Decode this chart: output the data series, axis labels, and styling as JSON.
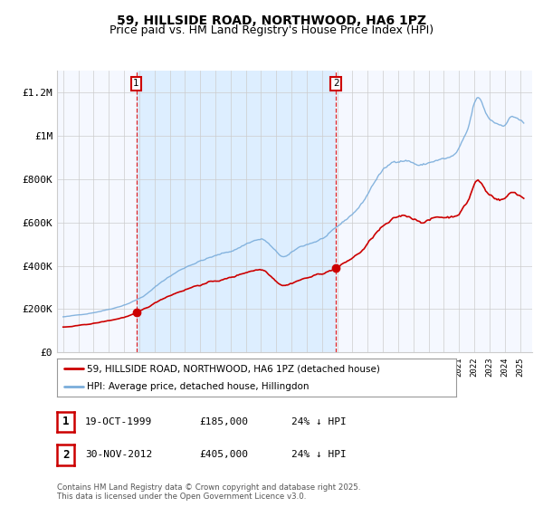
{
  "title": "59, HILLSIDE ROAD, NORTHWOOD, HA6 1PZ",
  "subtitle": "Price paid vs. HM Land Registry's House Price Index (HPI)",
  "title_fontsize": 10,
  "subtitle_fontsize": 9,
  "ylabel_ticks": [
    "£0",
    "£200K",
    "£400K",
    "£600K",
    "£800K",
    "£1M",
    "£1.2M"
  ],
  "ytick_values": [
    0,
    200000,
    400000,
    600000,
    800000,
    1000000,
    1200000
  ],
  "ylim": [
    0,
    1300000
  ],
  "xlim_start": 1994.6,
  "xlim_end": 2025.8,
  "line1_color": "#cc0000",
  "line2_color": "#7aaddb",
  "shading_color": "#ddeeff",
  "grid_color": "#cccccc",
  "transaction1_date": 1999.8,
  "transaction1_price": 185000,
  "transaction2_date": 2012.92,
  "transaction2_price": 405000,
  "legend1_label": "59, HILLSIDE ROAD, NORTHWOOD, HA6 1PZ (detached house)",
  "legend2_label": "HPI: Average price, detached house, Hillingdon",
  "table_row1": [
    "1",
    "19-OCT-1999",
    "£185,000",
    "24% ↓ HPI"
  ],
  "table_row2": [
    "2",
    "30-NOV-2012",
    "£405,000",
    "24% ↓ HPI"
  ],
  "footnote": "Contains HM Land Registry data © Crown copyright and database right 2025.\nThis data is licensed under the Open Government Licence v3.0.",
  "bg_color": "#ffffff",
  "plot_bg_color": "#f5f8ff"
}
